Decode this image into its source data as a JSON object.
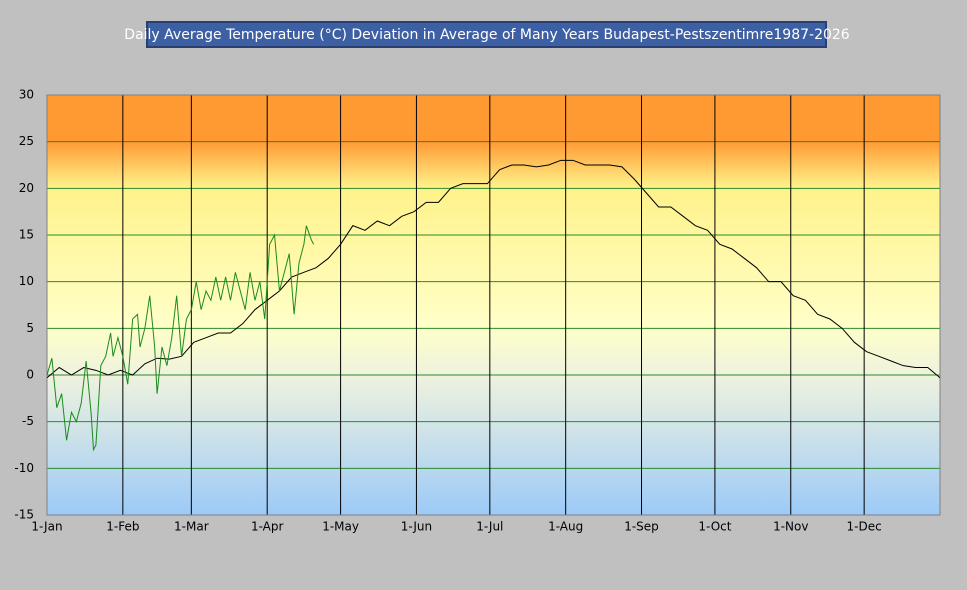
{
  "chart_data": {
    "type": "line",
    "title": "Daily Average Temperature  (°C) Deviation in Average of  Many Years Budapest-Pestszentimre1987-2026",
    "xlim": [
      0,
      365
    ],
    "xticks": [
      {
        "value": 0,
        "label": "1-Jan"
      },
      {
        "value": 31,
        "label": "1-Feb"
      },
      {
        "value": 59,
        "label": "1-Mar"
      },
      {
        "value": 90,
        "label": "1-Apr"
      },
      {
        "value": 120,
        "label": "1-May"
      },
      {
        "value": 151,
        "label": "1-Jun"
      },
      {
        "value": 181,
        "label": "1-Jul"
      },
      {
        "value": 212,
        "label": "1-Aug"
      },
      {
        "value": 243,
        "label": "1-Sep"
      },
      {
        "value": 273,
        "label": "1-Oct"
      },
      {
        "value": 304,
        "label": "1-Nov"
      },
      {
        "value": 334,
        "label": "1-Dec"
      }
    ],
    "ylim": [
      -15,
      30
    ],
    "yticks": [
      -15,
      -10,
      -5,
      0,
      5,
      10,
      15,
      20,
      25,
      30
    ],
    "grid": true,
    "series": [
      {
        "color": "#000000",
        "x": [
          0,
          5,
          10,
          15,
          20,
          25,
          30,
          35,
          40,
          45,
          50,
          55,
          60,
          65,
          70,
          75,
          80,
          85,
          90,
          95,
          100,
          105,
          110,
          115,
          120,
          125,
          130,
          135,
          140,
          145,
          150,
          155,
          160,
          165,
          170,
          175,
          180,
          185,
          190,
          195,
          200,
          205,
          210,
          215,
          220,
          225,
          230,
          235,
          240,
          245,
          250,
          255,
          260,
          265,
          270,
          275,
          280,
          285,
          290,
          295,
          300,
          305,
          310,
          315,
          320,
          325,
          330,
          335,
          340,
          345,
          350,
          355,
          360,
          365
        ],
        "values": [
          -0.3,
          0.8,
          0,
          0.8,
          0.5,
          0,
          0.5,
          0,
          1.2,
          1.8,
          1.7,
          2,
          3.5,
          4,
          4.5,
          4.5,
          5.5,
          7,
          8,
          9,
          10.5,
          11,
          11.5,
          12.5,
          14,
          16,
          15.5,
          16.5,
          16,
          17,
          17.5,
          18.5,
          18.5,
          20,
          20.5,
          20.5,
          20.5,
          22,
          22.5,
          22.5,
          22.3,
          22.5,
          23,
          23,
          22.5,
          22.5,
          22.5,
          22.3,
          21,
          19.5,
          18,
          18,
          17,
          16,
          15.5,
          14,
          13.5,
          12.5,
          11.5,
          10,
          10,
          8.5,
          8,
          6.5,
          6,
          5,
          3.5,
          2.5,
          2,
          1.5,
          1,
          0.8,
          0.8,
          -0.3
        ]
      },
      {
        "color": "#1a8c1a",
        "x": [
          0,
          2,
          4,
          6,
          8,
          10,
          12,
          14,
          16,
          18,
          19,
          20,
          22,
          24,
          26,
          27,
          29,
          31,
          33,
          35,
          37,
          38,
          40,
          42,
          44,
          45,
          47,
          49,
          51,
          53,
          55,
          57,
          59,
          61,
          63,
          65,
          67,
          69,
          71,
          73,
          75,
          77,
          79,
          81,
          83,
          85,
          87,
          89,
          91,
          93,
          95,
          97,
          99,
          101,
          103,
          105,
          106,
          108,
          109
        ],
        "values": [
          0,
          1.8,
          -3.5,
          -2,
          -7,
          -4,
          -5,
          -3,
          1.5,
          -4,
          -8,
          -7.5,
          1,
          2,
          4.5,
          2,
          4,
          2,
          -1,
          6,
          6.5,
          3,
          5,
          8.5,
          3,
          -2,
          3,
          1,
          4,
          8.5,
          2,
          6,
          7,
          10,
          7,
          9,
          8,
          10.5,
          8,
          10.5,
          8,
          11,
          9,
          7,
          11,
          8,
          10,
          6,
          14,
          15,
          9,
          11,
          13,
          6.5,
          12,
          14,
          16,
          14.5,
          14
        ]
      }
    ]
  }
}
